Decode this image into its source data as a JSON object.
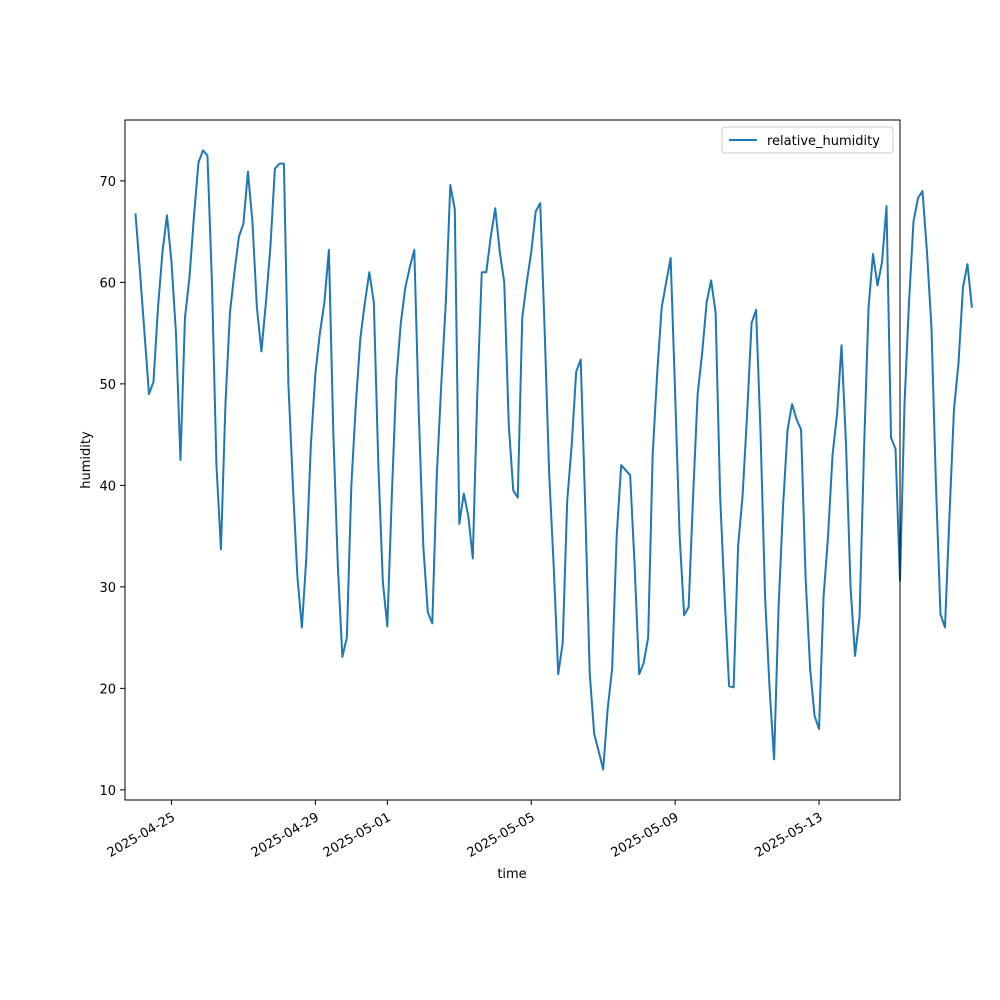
{
  "chart_data": {
    "type": "line",
    "title": "",
    "xlabel": "time",
    "ylabel": "humidity",
    "x_start": "2025-04-24T00:00",
    "x_step_hours": 3,
    "xlim": [
      "2025-04-23T17:00",
      "2025-05-15T06:00"
    ],
    "ylim": [
      9,
      76
    ],
    "x_ticks": [
      "2025-04-25",
      "2025-04-29",
      "2025-05-01",
      "2025-05-05",
      "2025-05-09",
      "2025-05-13"
    ],
    "y_ticks": [
      10,
      20,
      30,
      40,
      50,
      60,
      70
    ],
    "grid": false,
    "legend": {
      "position": "top-right",
      "entries": [
        "relative_humidity"
      ]
    },
    "series": [
      {
        "name": "relative_humidity",
        "color": "#1f77b4",
        "values": [
          66.8,
          61.0,
          55.0,
          49.0,
          50.2,
          57.5,
          63.0,
          66.6,
          62.0,
          55.0,
          42.5,
          56.5,
          60.5,
          66.5,
          71.8,
          73.0,
          72.5,
          60.0,
          42.0,
          33.7,
          48.0,
          57.0,
          61.0,
          64.5,
          65.8,
          70.9,
          66.0,
          57.5,
          53.2,
          58.0,
          63.5,
          71.2,
          71.7,
          71.7,
          50.0,
          40.0,
          31.0,
          26.0,
          33.0,
          44.0,
          51.0,
          55.0,
          58.0,
          63.2,
          45.0,
          32.0,
          23.1,
          25.0,
          40.0,
          48.0,
          54.5,
          58.0,
          61.0,
          58.0,
          42.0,
          30.5,
          26.1,
          39.0,
          50.5,
          56.0,
          59.5,
          61.5,
          63.2,
          47.0,
          34.0,
          27.5,
          26.4,
          41.0,
          50.0,
          58.0,
          69.6,
          67.2,
          36.2,
          39.2,
          37.0,
          32.8,
          49.0,
          61.0,
          61.0,
          64.5,
          67.3,
          63.0,
          60.0,
          46.0,
          39.5,
          38.8,
          56.5,
          60.0,
          63.0,
          67.0,
          67.8,
          55.0,
          41.0,
          32.0,
          21.4,
          24.5,
          38.5,
          44.0,
          51.2,
          52.4,
          38.0,
          21.5,
          15.5,
          13.8,
          12.0,
          18.0,
          22.0,
          35.0,
          42.0,
          41.5,
          41.0,
          32.0,
          21.4,
          22.5,
          25.0,
          43.0,
          51.0,
          57.5,
          60.0,
          62.4,
          49.0,
          35.0,
          27.2,
          28.0,
          39.0,
          49.0,
          53.0,
          58.0,
          60.2,
          57.0,
          39.0,
          29.0,
          20.2,
          20.1,
          34.0,
          39.0,
          47.0,
          56.0,
          57.3,
          45.0,
          29.0,
          20.0,
          13.0,
          28.0,
          38.0,
          45.5,
          48.0,
          46.5,
          45.5,
          31.0,
          22.0,
          17.3,
          16.0,
          29.0,
          35.0,
          43.0,
          47.0,
          53.8,
          44.0,
          30.0,
          23.2,
          27.0,
          43.5,
          57.5,
          62.8,
          59.7,
          62.0,
          67.5,
          44.7,
          43.6,
          30.6,
          48.0,
          58.0,
          66.0,
          68.3,
          69.0,
          63.0,
          55.5,
          40.0,
          27.3,
          26.0,
          37.0,
          47.5,
          52.0,
          59.5,
          61.8,
          57.5
        ]
      }
    ]
  }
}
